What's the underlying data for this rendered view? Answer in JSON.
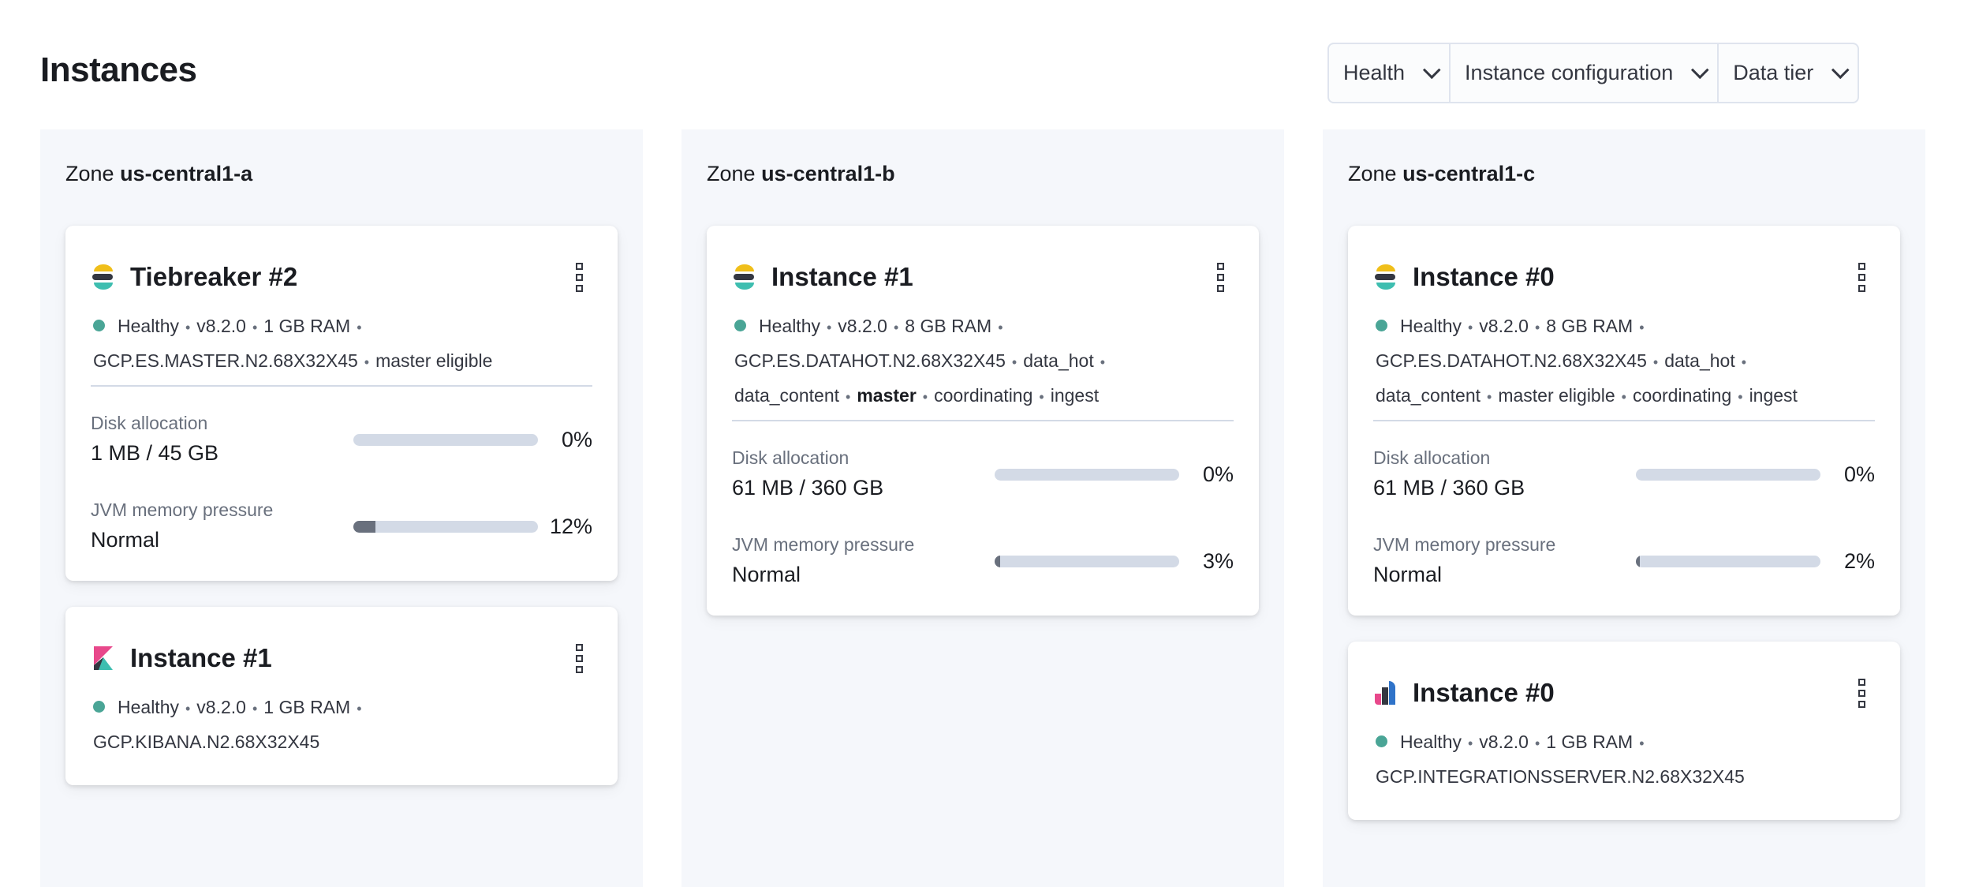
{
  "page": {
    "title": "Instances"
  },
  "filters": [
    {
      "label": "Health"
    },
    {
      "label": "Instance configuration"
    },
    {
      "label": "Data tier"
    }
  ],
  "zones": [
    {
      "prefix": "Zone",
      "name": "us-central1-a",
      "cards": [
        {
          "icon": "elasticsearch-logo-icon",
          "name": "Tiebreaker #2",
          "status": "Healthy",
          "meta": [
            "v8.2.0",
            "1 GB RAM",
            "GCP.ES.MASTER.N2.68X32X45",
            "master eligible"
          ],
          "metrics": [
            {
              "label": "Disk allocation",
              "value": "1 MB / 45 GB",
              "percent": 0,
              "percent_label": "0%"
            },
            {
              "label": "JVM memory pressure",
              "value": "Normal",
              "percent": 12,
              "percent_label": "12%"
            }
          ]
        },
        {
          "icon": "kibana-logo-icon",
          "name": "Instance #1",
          "status": "Healthy",
          "meta": [
            "v8.2.0",
            "1 GB RAM",
            "GCP.KIBANA.N2.68X32X45"
          ],
          "metrics": []
        }
      ]
    },
    {
      "prefix": "Zone",
      "name": "us-central1-b",
      "cards": [
        {
          "icon": "elasticsearch-logo-icon",
          "name": "Instance #1",
          "status": "Healthy",
          "meta": [
            "v8.2.0",
            "8 GB RAM",
            "GCP.ES.DATAHOT.N2.68X32X45",
            "data_hot",
            "data_content",
            "master",
            "coordinating",
            "ingest"
          ],
          "bold": "master",
          "metrics": [
            {
              "label": "Disk allocation",
              "value": "61 MB / 360 GB",
              "percent": 0,
              "percent_label": "0%"
            },
            {
              "label": "JVM memory pressure",
              "value": "Normal",
              "percent": 3,
              "percent_label": "3%"
            }
          ]
        }
      ]
    },
    {
      "prefix": "Zone",
      "name": "us-central1-c",
      "cards": [
        {
          "icon": "elasticsearch-logo-icon",
          "name": "Instance #0",
          "status": "Healthy",
          "meta": [
            "v8.2.0",
            "8 GB RAM",
            "GCP.ES.DATAHOT.N2.68X32X45",
            "data_hot",
            "data_content",
            "master eligible",
            "coordinating",
            "ingest"
          ],
          "metrics": [
            {
              "label": "Disk allocation",
              "value": "61 MB / 360 GB",
              "percent": 0,
              "percent_label": "0%"
            },
            {
              "label": "JVM memory pressure",
              "value": "Normal",
              "percent": 2,
              "percent_label": "2%"
            }
          ]
        },
        {
          "icon": "integrations-server-logo-icon",
          "name": "Instance #0",
          "status": "Healthy",
          "meta": [
            "v8.2.0",
            "1 GB RAM",
            "GCP.INTEGRATIONSSERVER.N2.68X32X45"
          ],
          "metrics": []
        }
      ]
    }
  ],
  "colors": {
    "healthy": "#4aa596",
    "bar_track": "#d3dae6",
    "bar_fill": "#69707d",
    "zone_bg": "#f5f7fb"
  }
}
